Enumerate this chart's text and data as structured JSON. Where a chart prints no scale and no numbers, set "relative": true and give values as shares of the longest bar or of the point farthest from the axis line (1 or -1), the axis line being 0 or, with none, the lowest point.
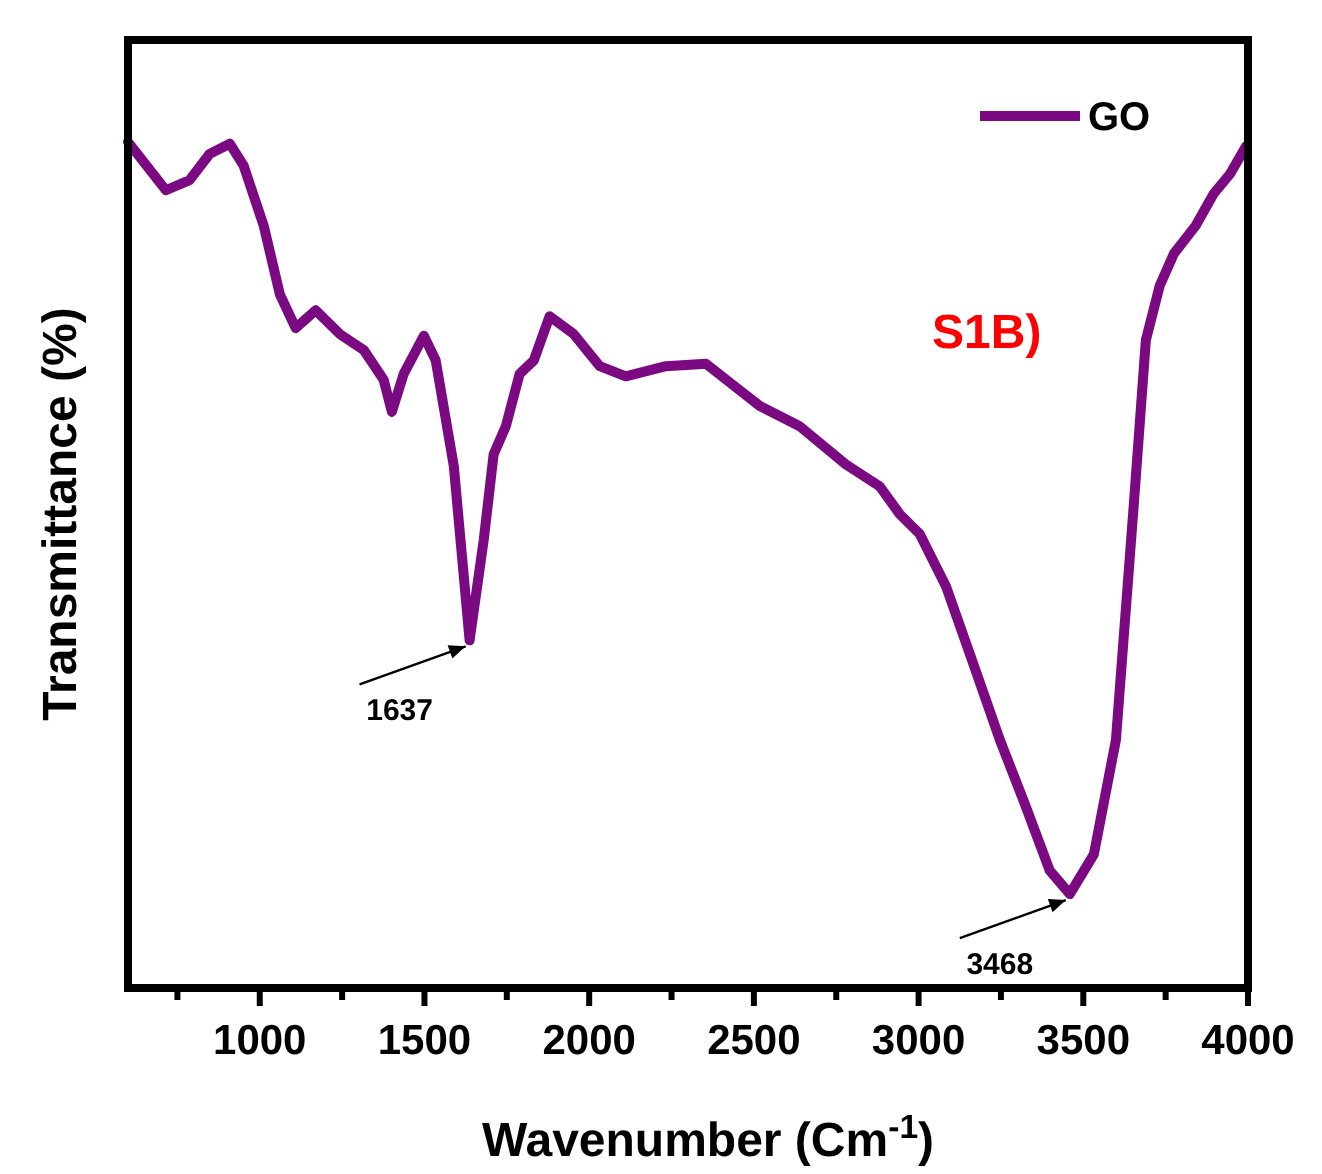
{
  "chart_data": {
    "type": "line",
    "relative": true,
    "xlabel": "Wavenumber (Cm$^{-1}$)",
    "ylabel": "Transmittance (%)",
    "xlim": [
      600,
      4000
    ],
    "xticks": [
      {
        "value": 750,
        "label": null
      },
      1000,
      {
        "value": 1250,
        "label": null
      },
      1500,
      {
        "value": 1750,
        "label": null
      },
      2000,
      {
        "value": 2250,
        "label": null
      },
      2500,
      {
        "value": 2750,
        "label": null
      },
      3000,
      {
        "value": 3250,
        "label": null
      },
      3500,
      {
        "value": 3750,
        "label": null
      },
      4000
    ],
    "legend": "top right",
    "grid": false,
    "annotations": [
      {
        "text": "1637",
        "x": 1637,
        "y": 0.411
      },
      {
        "text": "3468",
        "x": 3459,
        "y": 0.111
      },
      "S1B)"
    ],
    "series": [
      {
        "name": "GO",
        "color": "#7b0a82",
        "x": [
          600,
          715,
          787,
          848,
          909,
          951,
          1012,
          1061,
          1109,
          1170,
          1243,
          1316,
          1376,
          1401,
          1437,
          1498,
          1534,
          1589,
          1637,
          1680,
          1710,
          1747,
          1789,
          1832,
          1880,
          1953,
          2032,
          2111,
          2233,
          2354,
          2439,
          2518,
          2639,
          2779,
          2882,
          2943,
          3003,
          3083,
          3168,
          3247,
          3325,
          3398,
          3459,
          3532,
          3599,
          3653,
          3690,
          3732,
          3775,
          3841,
          3896,
          3945,
          3994
        ],
        "values": [
          1.0,
          0.943,
          0.955,
          0.986,
          0.998,
          0.972,
          0.901,
          0.82,
          0.78,
          0.801,
          0.773,
          0.754,
          0.719,
          0.681,
          0.726,
          0.771,
          0.742,
          0.617,
          0.411,
          0.53,
          0.631,
          0.664,
          0.726,
          0.742,
          0.794,
          0.773,
          0.735,
          0.723,
          0.735,
          0.738,
          0.712,
          0.688,
          0.664,
          0.619,
          0.593,
          0.56,
          0.537,
          0.475,
          0.381,
          0.293,
          0.215,
          0.139,
          0.111,
          0.158,
          0.293,
          0.57,
          0.766,
          0.83,
          0.868,
          0.901,
          0.939,
          0.962,
          0.995
        ]
      }
    ]
  }
}
